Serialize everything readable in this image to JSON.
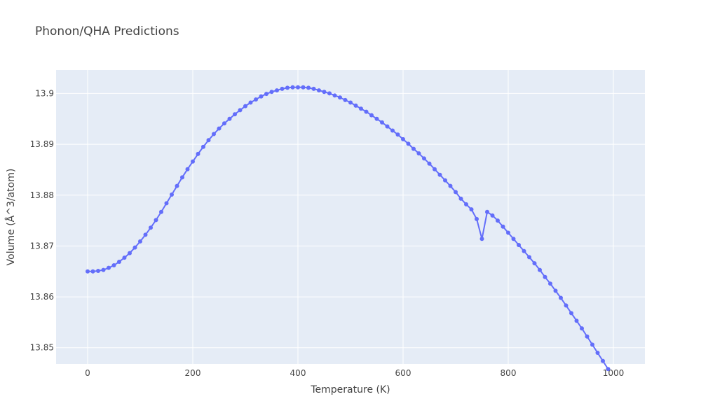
{
  "chart_data": {
    "type": "line",
    "title": "Phonon/QHA Predictions",
    "xlabel": "Temperature (K)",
    "ylabel": "Volume (Å^3/atom)",
    "xlim": [
      -60,
      1060
    ],
    "ylim": [
      13.8468,
      13.9046
    ],
    "x_ticks": [
      0,
      200,
      400,
      600,
      800,
      1000
    ],
    "x_tick_labels": [
      "0",
      "200",
      "400",
      "600",
      "800",
      "1000"
    ],
    "y_ticks": [
      13.85,
      13.86,
      13.87,
      13.88,
      13.89,
      13.9
    ],
    "y_tick_labels": [
      "13.85",
      "13.86",
      "13.87",
      "13.88",
      "13.89",
      "13.9"
    ],
    "grid": true,
    "line_color": "#636efa",
    "plot_bg": "#e5ecf6",
    "series": [
      {
        "mode": "lines+markers",
        "x": [
          0,
          10,
          20,
          30,
          40,
          50,
          60,
          70,
          80,
          90,
          100,
          110,
          120,
          130,
          140,
          150,
          160,
          170,
          180,
          190,
          200,
          210,
          220,
          230,
          240,
          250,
          260,
          270,
          280,
          290,
          300,
          310,
          320,
          330,
          340,
          350,
          360,
          370,
          380,
          390,
          400,
          410,
          420,
          430,
          440,
          450,
          460,
          470,
          480,
          490,
          500,
          510,
          520,
          530,
          540,
          550,
          560,
          570,
          580,
          590,
          600,
          610,
          620,
          630,
          640,
          650,
          660,
          670,
          680,
          690,
          700,
          710,
          720,
          730,
          740,
          750,
          760,
          770,
          780,
          790,
          800,
          810,
          820,
          830,
          840,
          850,
          860,
          870,
          880,
          890,
          900,
          910,
          920,
          930,
          940,
          950,
          960,
          970,
          980,
          990
        ],
        "y": [
          13.865,
          13.865,
          13.8651,
          13.8653,
          13.8657,
          13.8662,
          13.8669,
          13.8677,
          13.8686,
          13.8697,
          13.8709,
          13.8722,
          13.8736,
          13.8751,
          13.8767,
          13.8784,
          13.8801,
          13.8818,
          13.8835,
          13.8851,
          13.8866,
          13.8881,
          13.8895,
          13.8908,
          13.892,
          13.8931,
          13.8941,
          13.895,
          13.8959,
          13.8967,
          13.8975,
          13.8982,
          13.8988,
          13.8994,
          13.8999,
          13.9003,
          13.9006,
          13.9009,
          13.9011,
          13.9012,
          13.9012,
          13.9012,
          13.9011,
          13.9009,
          13.9006,
          13.9003,
          13.9,
          13.8996,
          13.8992,
          13.8987,
          13.8982,
          13.8976,
          13.897,
          13.8964,
          13.8957,
          13.895,
          13.8943,
          13.8935,
          13.8927,
          13.8919,
          13.891,
          13.8901,
          13.8891,
          13.8882,
          13.8872,
          13.8862,
          13.8851,
          13.884,
          13.8829,
          13.8818,
          13.8806,
          13.8793,
          13.8782,
          13.8772,
          13.8753,
          13.8714,
          13.8767,
          13.876,
          13.875,
          13.8738,
          13.8726,
          13.8714,
          13.8702,
          13.869,
          13.8678,
          13.8666,
          13.8653,
          13.8639,
          13.8626,
          13.8612,
          13.8598,
          13.8583,
          13.8568,
          13.8553,
          13.8538,
          13.8522,
          13.8506,
          13.849,
          13.8474,
          13.8458
        ]
      }
    ]
  }
}
